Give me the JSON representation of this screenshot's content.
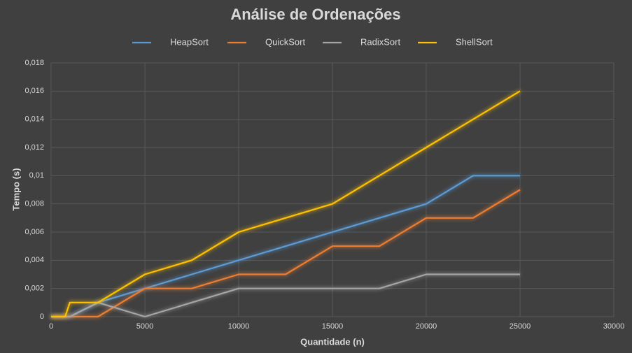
{
  "chart_data": {
    "type": "line",
    "title": "Análise de Ordenações",
    "x_label": "Quantidade (n)",
    "y_label": "Tempo (s)",
    "x": [
      0,
      750,
      1000,
      2500,
      5000,
      7500,
      10000,
      12500,
      15000,
      17500,
      20000,
      22500,
      25000
    ],
    "series": [
      {
        "name": "HeapSort",
        "color": "#5b9bd5",
        "values": [
          0,
          0,
          0,
          0.001,
          0.002,
          0.003,
          0.004,
          0.005,
          0.006,
          0.007,
          0.008,
          0.01,
          0.01
        ]
      },
      {
        "name": "QuickSort",
        "color": "#ed7d31",
        "values": [
          0,
          0,
          0,
          0,
          0.002,
          0.002,
          0.003,
          0.003,
          0.005,
          0.005,
          0.007,
          0.007,
          0.009
        ]
      },
      {
        "name": "RadixSort",
        "color": "#a5a5a5",
        "values": [
          0,
          0,
          0,
          0.001,
          0,
          0.001,
          0.002,
          0.002,
          0.002,
          0.002,
          0.003,
          0.003,
          0.003
        ]
      },
      {
        "name": "ShellSort",
        "color": "#ffc000",
        "values": [
          0,
          0,
          0.001,
          0.001,
          0.003,
          0.004,
          0.006,
          0.007,
          0.008,
          0.01,
          0.012,
          0.014,
          0.016
        ]
      }
    ],
    "xlim": [
      0,
      30000
    ],
    "xticks": [
      0,
      5000,
      10000,
      15000,
      20000,
      25000,
      30000
    ],
    "ylim": [
      0,
      0.018
    ],
    "yticks": [
      0,
      {
        "value": 0.002,
        "label": "0,002"
      },
      {
        "value": 0.004,
        "label": "0,004"
      },
      {
        "value": 0.006,
        "label": "0,006"
      },
      {
        "value": 0.008,
        "label": "0,008"
      },
      {
        "value": 0.01,
        "label": "0,01"
      },
      {
        "value": 0.012,
        "label": "0,012"
      },
      {
        "value": 0.014,
        "label": "0,014"
      },
      {
        "value": 0.016,
        "label": "0,016"
      },
      {
        "value": 0.018,
        "label": "0,018"
      }
    ],
    "grid": true,
    "legend": "top"
  }
}
